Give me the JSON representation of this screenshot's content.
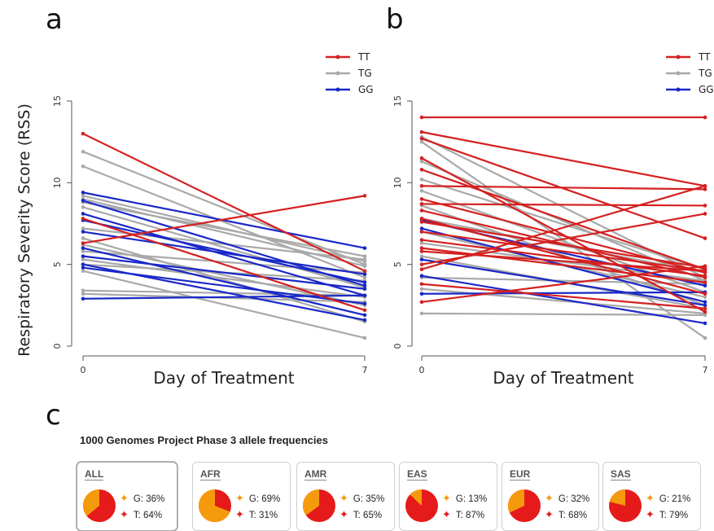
{
  "panels": {
    "a": "a",
    "b": "b",
    "c": "c"
  },
  "chart_data": [
    {
      "type": "line",
      "panel": "a",
      "ylabel": "Respiratory Severity Score (RSS)",
      "xlabel": "Day of Treatment",
      "x": [
        0,
        7
      ],
      "xticks": [
        "0",
        "7"
      ],
      "yticks": [
        "0",
        "5",
        "10",
        "15"
      ],
      "ylim": [
        0,
        15
      ],
      "legend": [
        "TT",
        "TG",
        "GG"
      ],
      "legend_position": "top-right",
      "colors": {
        "TT": "#d42020",
        "TG": "#a9a9a9",
        "GG": "#1a28c8"
      },
      "lines": [
        {
          "g": "TG",
          "y": [
            11.9,
            5.0
          ]
        },
        {
          "g": "TG",
          "y": [
            11.0,
            4.2
          ]
        },
        {
          "g": "TG",
          "y": [
            9.2,
            5.2
          ]
        },
        {
          "g": "TG",
          "y": [
            9.0,
            4.9
          ]
        },
        {
          "g": "TG",
          "y": [
            8.8,
            5.5
          ]
        },
        {
          "g": "TG",
          "y": [
            8.5,
            3.6
          ]
        },
        {
          "g": "TG",
          "y": [
            7.2,
            5.3
          ]
        },
        {
          "g": "TG",
          "y": [
            6.6,
            1.5
          ]
        },
        {
          "g": "TG",
          "y": [
            6.2,
            2.5
          ]
        },
        {
          "g": "TG",
          "y": [
            5.8,
            4.5
          ]
        },
        {
          "g": "TG",
          "y": [
            5.3,
            3.0
          ]
        },
        {
          "g": "TG",
          "y": [
            5.0,
            4.0
          ]
        },
        {
          "g": "TG",
          "y": [
            4.6,
            0.5
          ]
        },
        {
          "g": "TG",
          "y": [
            3.4,
            3.1
          ]
        },
        {
          "g": "TG",
          "y": [
            3.2,
            2.7
          ]
        },
        {
          "g": "GG",
          "y": [
            9.4,
            6.0
          ]
        },
        {
          "g": "GG",
          "y": [
            8.9,
            3.7
          ]
        },
        {
          "g": "GG",
          "y": [
            8.1,
            3.1
          ]
        },
        {
          "g": "GG",
          "y": [
            7.7,
            3.9
          ]
        },
        {
          "g": "GG",
          "y": [
            7.0,
            4.4
          ]
        },
        {
          "g": "GG",
          "y": [
            6.0,
            1.9
          ]
        },
        {
          "g": "GG",
          "y": [
            5.5,
            3.5
          ]
        },
        {
          "g": "GG",
          "y": [
            5.0,
            1.6
          ]
        },
        {
          "g": "GG",
          "y": [
            4.8,
            2.6
          ]
        },
        {
          "g": "GG",
          "y": [
            2.9,
            3.1
          ]
        },
        {
          "g": "TT",
          "y": [
            13.0,
            4.6
          ]
        },
        {
          "g": "TT",
          "y": [
            7.8,
            2.2
          ]
        },
        {
          "g": "TT",
          "y": [
            6.3,
            9.2
          ]
        }
      ]
    },
    {
      "type": "line",
      "panel": "b",
      "xlabel": "Day of Treatment",
      "x": [
        0,
        7
      ],
      "xticks": [
        "0",
        "7"
      ],
      "yticks": [
        "0",
        "5",
        "10",
        "15"
      ],
      "ylim": [
        0,
        15
      ],
      "legend": [
        "TT",
        "TG",
        "GG"
      ],
      "legend_position": "top-right",
      "colors": {
        "TT": "#d42020",
        "TG": "#a9a9a9",
        "GG": "#1a28c8"
      },
      "lines": [
        {
          "g": "TG",
          "y": [
            12.8,
            4.2
          ]
        },
        {
          "g": "TG",
          "y": [
            12.5,
            0.5
          ]
        },
        {
          "g": "TG",
          "y": [
            11.3,
            4.0
          ]
        },
        {
          "g": "TG",
          "y": [
            10.2,
            4.7
          ]
        },
        {
          "g": "TG",
          "y": [
            9.5,
            3.3
          ]
        },
        {
          "g": "TG",
          "y": [
            8.6,
            2.5
          ]
        },
        {
          "g": "TG",
          "y": [
            7.8,
            4.5
          ]
        },
        {
          "g": "TG",
          "y": [
            7.0,
            3.0
          ]
        },
        {
          "g": "TG",
          "y": [
            6.3,
            4.0
          ]
        },
        {
          "g": "TG",
          "y": [
            5.5,
            2.3
          ]
        },
        {
          "g": "TG",
          "y": [
            4.2,
            3.8
          ]
        },
        {
          "g": "TG",
          "y": [
            3.5,
            2.0
          ]
        },
        {
          "g": "TG",
          "y": [
            2.0,
            1.9
          ]
        },
        {
          "g": "GG",
          "y": [
            7.7,
            3.7
          ]
        },
        {
          "g": "GG",
          "y": [
            7.2,
            2.7
          ]
        },
        {
          "g": "GG",
          "y": [
            5.3,
            2.5
          ]
        },
        {
          "g": "GG",
          "y": [
            4.3,
            1.4
          ]
        },
        {
          "g": "GG",
          "y": [
            3.2,
            3.3
          ]
        },
        {
          "g": "TT",
          "y": [
            14.0,
            14.0
          ]
        },
        {
          "g": "TT",
          "y": [
            13.1,
            9.8
          ]
        },
        {
          "g": "TT",
          "y": [
            12.7,
            6.6
          ]
        },
        {
          "g": "TT",
          "y": [
            11.5,
            2.1
          ]
        },
        {
          "g": "TT",
          "y": [
            10.8,
            4.7
          ]
        },
        {
          "g": "TT",
          "y": [
            9.8,
            9.6
          ]
        },
        {
          "g": "TT",
          "y": [
            9.0,
            4.5
          ]
        },
        {
          "g": "TT",
          "y": [
            8.7,
            8.6
          ]
        },
        {
          "g": "TT",
          "y": [
            8.3,
            4.2
          ]
        },
        {
          "g": "TT",
          "y": [
            7.8,
            3.2
          ]
        },
        {
          "g": "TT",
          "y": [
            7.6,
            4.8
          ]
        },
        {
          "g": "TT",
          "y": [
            7.0,
            4.6
          ]
        },
        {
          "g": "TT",
          "y": [
            6.5,
            4.3
          ]
        },
        {
          "g": "TT",
          "y": [
            6.0,
            3.9
          ]
        },
        {
          "g": "TT",
          "y": [
            5.8,
            4.6
          ]
        },
        {
          "g": "TT",
          "y": [
            5.0,
            8.1
          ]
        },
        {
          "g": "TT",
          "y": [
            4.7,
            9.8
          ]
        },
        {
          "g": "TT",
          "y": [
            3.8,
            2.3
          ]
        },
        {
          "g": "TT",
          "y": [
            2.7,
            4.9
          ]
        }
      ]
    },
    {
      "type": "pie",
      "panel": "c",
      "title": "1000 Genomes Project Phase 3 allele frequencies",
      "colors": {
        "G": "#f59a0c",
        "T": "#e51a1a"
      },
      "populations": [
        {
          "name": "ALL",
          "G": 36,
          "T": 64,
          "g_label": "G: 36%",
          "t_label": "T: 64%"
        },
        {
          "name": "AFR",
          "G": 69,
          "T": 31,
          "g_label": "G: 69%",
          "t_label": "T: 31%"
        },
        {
          "name": "AMR",
          "G": 35,
          "T": 65,
          "g_label": "G: 35%",
          "t_label": "T: 65%"
        },
        {
          "name": "EAS",
          "G": 13,
          "T": 87,
          "g_label": "G: 13%",
          "t_label": "T: 87%"
        },
        {
          "name": "EUR",
          "G": 32,
          "T": 68,
          "g_label": "G: 32%",
          "t_label": "T: 68%"
        },
        {
          "name": "SAS",
          "G": 21,
          "T": 79,
          "g_label": "G: 21%",
          "t_label": "T: 79%"
        }
      ]
    }
  ]
}
